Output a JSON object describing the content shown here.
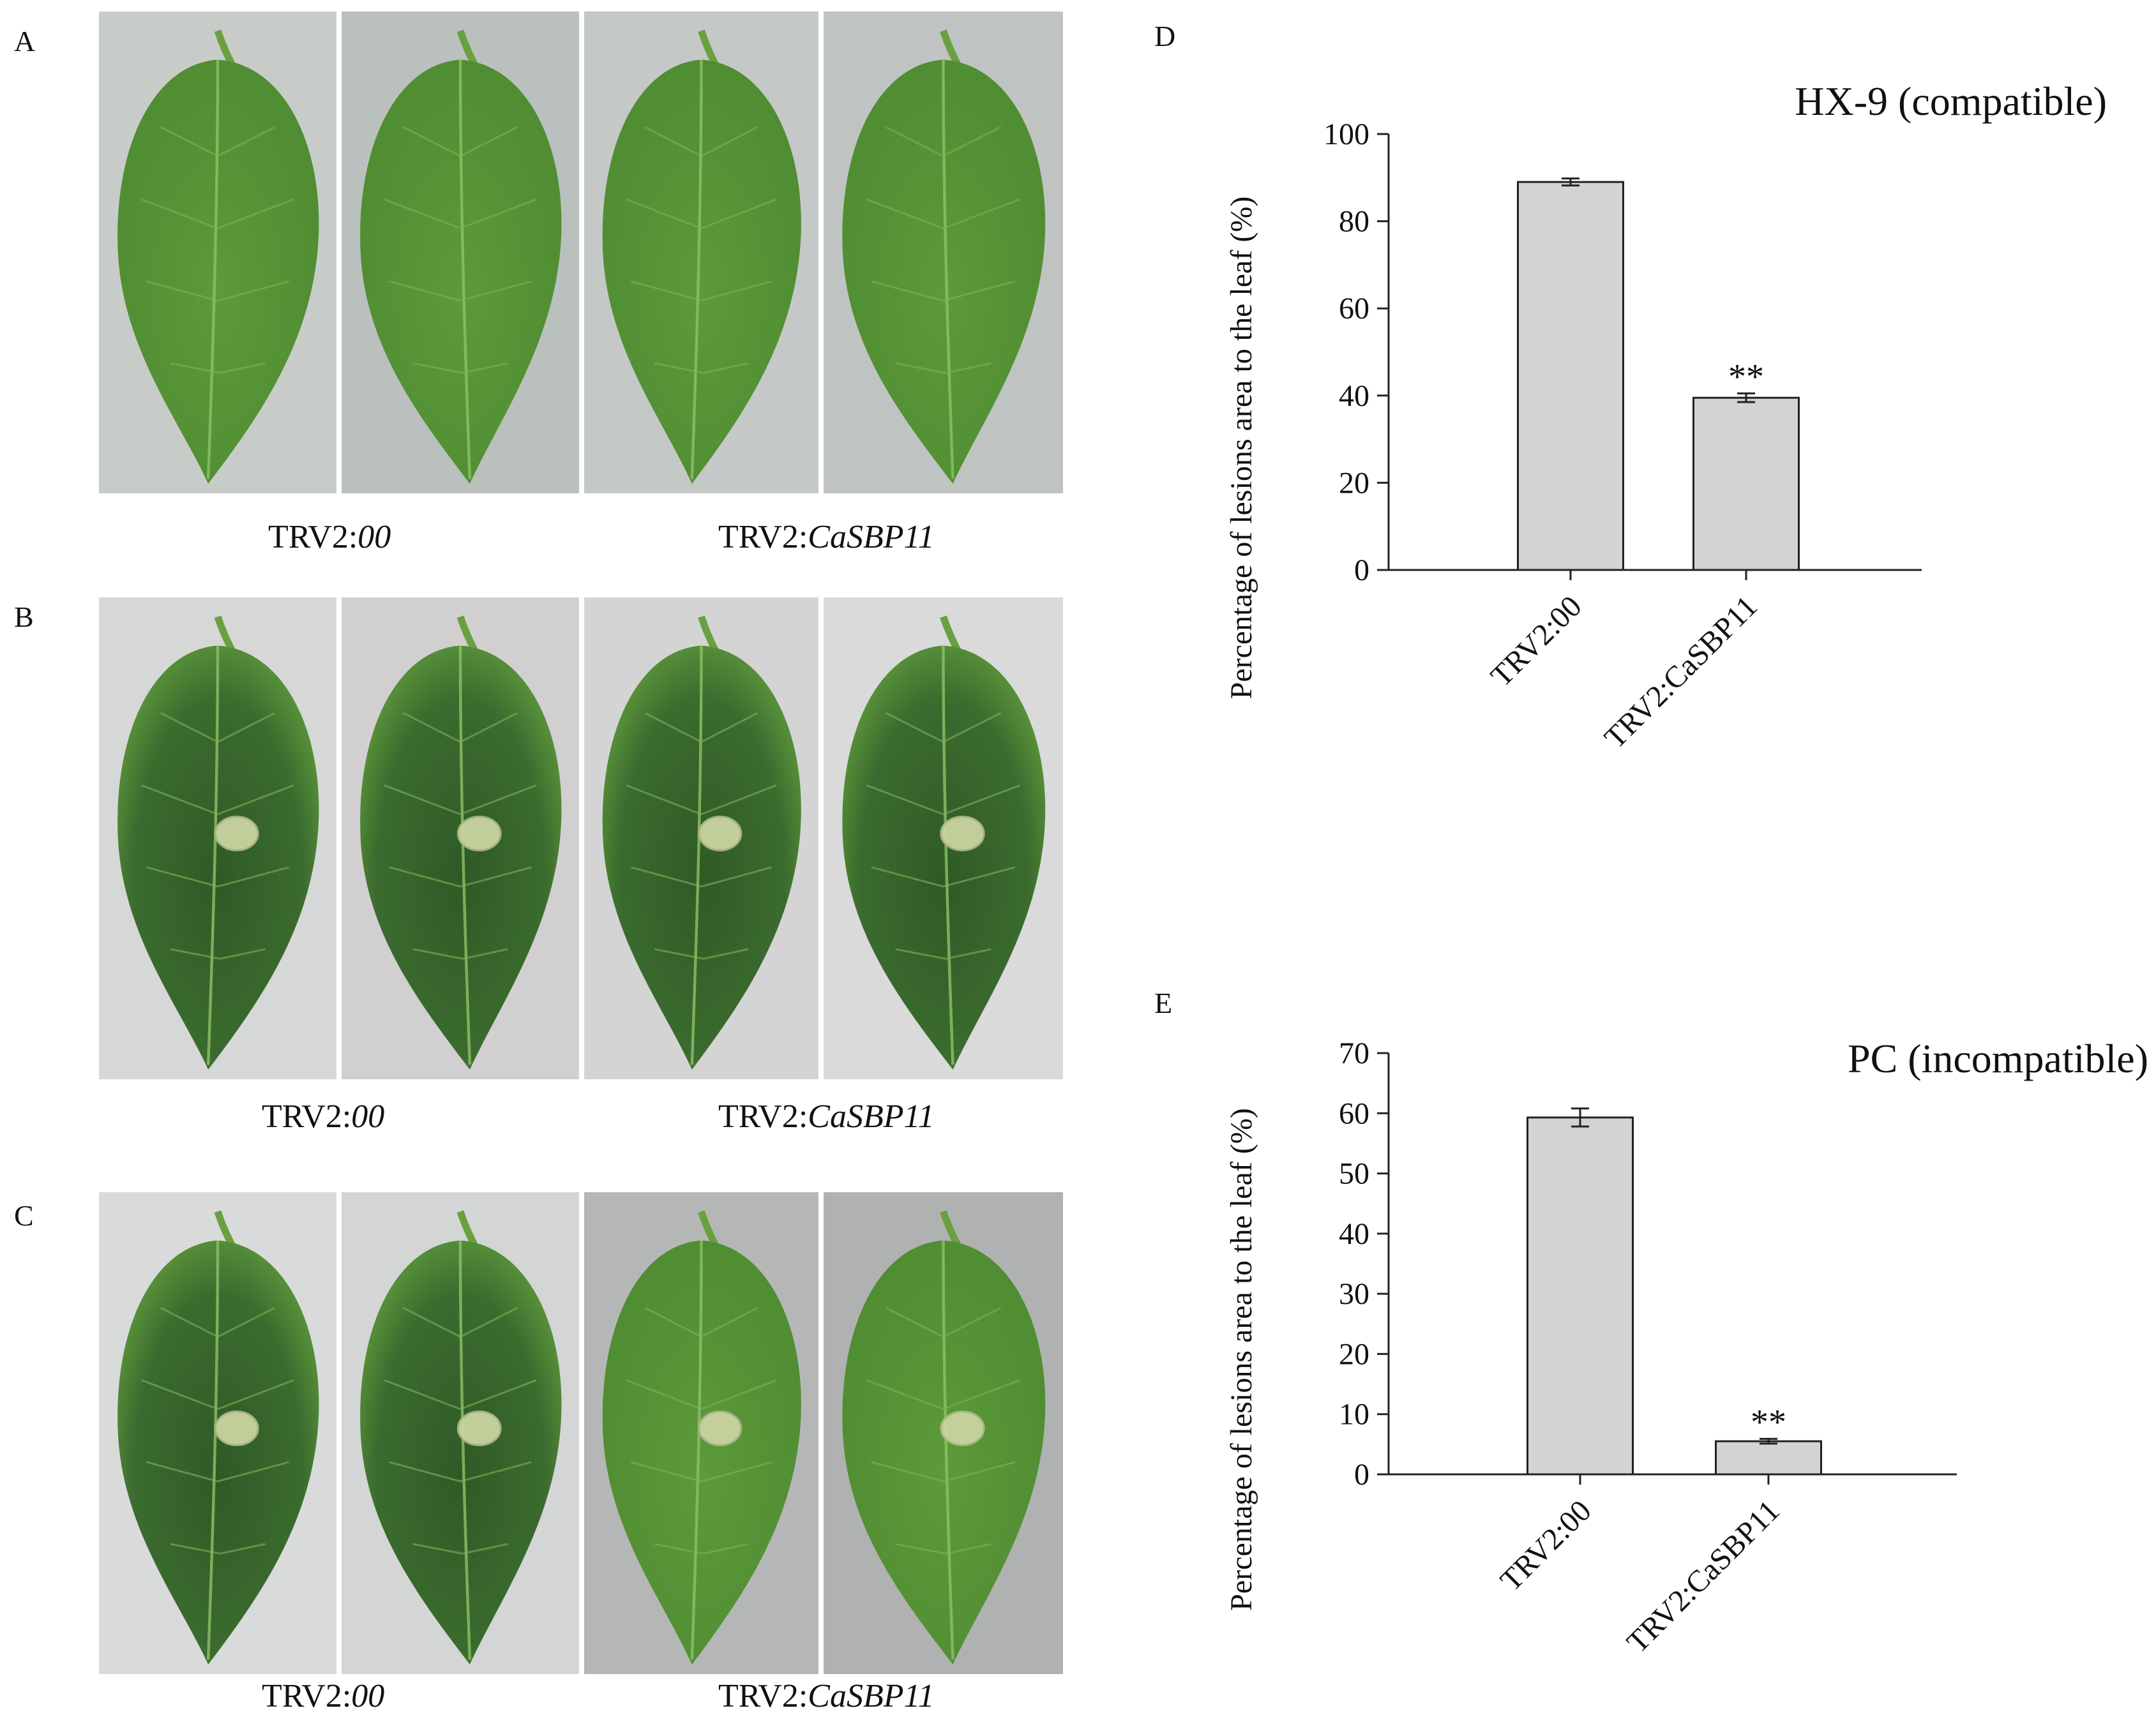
{
  "panels": {
    "A": {
      "letter": "A",
      "left_caption": {
        "prefix": "TRV2:",
        "italic": "00"
      },
      "right_caption": {
        "prefix": "TRV2:",
        "italic": "CaSBP11"
      }
    },
    "B": {
      "letter": "B",
      "left_caption": {
        "prefix": "TRV2:",
        "italic": "00"
      },
      "right_caption": {
        "prefix": "TRV2:",
        "italic": "CaSBP11"
      }
    },
    "C": {
      "letter": "C",
      "left_caption": {
        "prefix": "TRV2:",
        "italic": "00"
      },
      "right_caption": {
        "prefix": "TRV2:",
        "italic": "CaSBP11"
      }
    },
    "D": {
      "letter": "D"
    },
    "E": {
      "letter": "E"
    }
  },
  "colors": {
    "leaf_green": "#5f9a3a",
    "leaf_dark": "#3f6e2a",
    "background_gray": "#c9ccca",
    "bar_fill": "#d3d3d3",
    "disc": "#c9d6a0"
  },
  "chart_data": [
    {
      "type": "bar",
      "panel": "D",
      "title": "HX-9 (compatible)",
      "xlabel": "",
      "ylabel": "Percentage of  lesions area to the leaf (%)",
      "categories": [
        "TRV2:00",
        "TRV2:CaSBP11"
      ],
      "values": [
        89,
        39.5
      ],
      "errors": [
        0.8,
        1.0
      ],
      "significance": [
        "",
        "**"
      ],
      "ylim": [
        0,
        100
      ],
      "yticks": [
        0,
        20,
        40,
        60,
        80,
        100
      ]
    },
    {
      "type": "bar",
      "panel": "E",
      "title": "PC (incompatible)",
      "xlabel": "",
      "ylabel": "Percentage of  lesions area to the leaf (%)",
      "categories": [
        "TRV2:00",
        "TRV2:CaSBP11"
      ],
      "values": [
        59.3,
        5.5
      ],
      "errors": [
        1.5,
        0.4
      ],
      "significance": [
        "",
        "**"
      ],
      "ylim": [
        0,
        70
      ],
      "yticks": [
        0,
        10,
        20,
        30,
        40,
        50,
        60,
        70
      ]
    }
  ]
}
